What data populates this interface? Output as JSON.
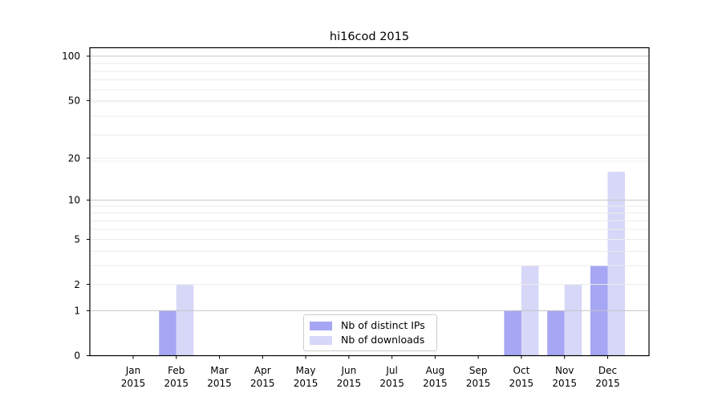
{
  "chart_data": {
    "type": "bar",
    "title": "hi16cod 2015",
    "categories": [
      "Jan",
      "Feb",
      "Mar",
      "Apr",
      "May",
      "Jun",
      "Jul",
      "Aug",
      "Sep",
      "Oct",
      "Nov",
      "Dec"
    ],
    "category_year_line": "2015",
    "series": [
      {
        "name": "Nb of distinct IPs",
        "color": "#a6a6f4",
        "values": [
          0,
          1,
          0,
          0,
          0,
          0,
          0,
          0,
          0,
          1,
          1,
          3
        ]
      },
      {
        "name": "Nb of downloads",
        "color": "#d7d7f8",
        "values": [
          0,
          2,
          0,
          0,
          0,
          0,
          0,
          0,
          0,
          3,
          2,
          16
        ]
      }
    ],
    "xlabel": "",
    "ylabel": "",
    "yscale": "log1p",
    "ylim": [
      0,
      113
    ],
    "yticks": [
      0,
      1,
      2,
      5,
      10,
      20,
      50,
      100
    ],
    "grid": {
      "orientation": "horizontal",
      "major_ticks_with_dark_lines": [
        1,
        10,
        100
      ],
      "minor_ticks_with_light_lines": [
        2,
        3,
        4,
        5,
        6,
        7,
        8,
        9,
        19,
        20,
        29,
        39,
        49,
        50,
        59,
        69,
        79,
        89
      ],
      "major_color": "#c6c6c6",
      "minor_color": "#ececec"
    },
    "legend": {
      "position": "lower center",
      "entries": [
        "Nb of distinct IPs",
        "Nb of downloads"
      ]
    }
  }
}
